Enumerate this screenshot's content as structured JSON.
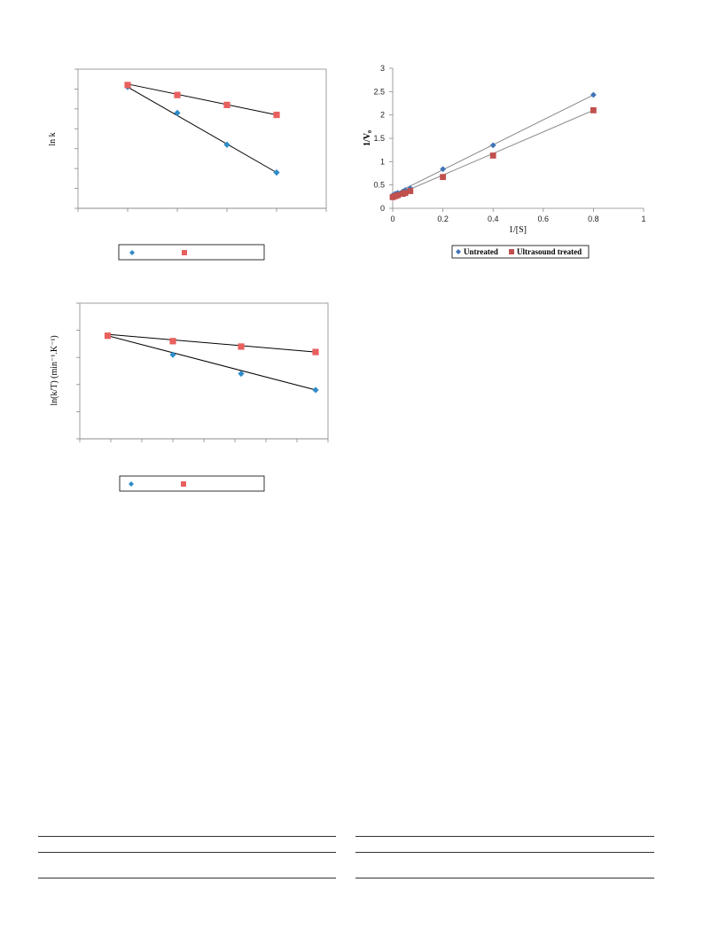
{
  "chart_data": [
    {
      "id": "lnk",
      "type": "scatter",
      "ylabel": "ln k",
      "xlabel": "",
      "legend_entries": [
        "",
        ""
      ],
      "series": [
        {
          "name": "",
          "color": "#2e8bc9",
          "marker": "diamond",
          "points": [
            [
              1,
              6.1
            ],
            [
              2,
              4.8
            ],
            [
              3,
              3.2
            ],
            [
              4,
              1.8
            ]
          ],
          "fit": [
            [
              1,
              6.1
            ],
            [
              4,
              1.8
            ]
          ]
        },
        {
          "name": "",
          "color": "#e8605e",
          "marker": "square",
          "points": [
            [
              1,
              6.2
            ],
            [
              2,
              5.7
            ],
            [
              3,
              5.2
            ],
            [
              4,
              4.7
            ]
          ],
          "fit": [
            [
              1,
              6.25
            ],
            [
              4,
              4.7
            ]
          ]
        }
      ],
      "xlim": [
        0,
        5
      ],
      "ylim": [
        0,
        7
      ],
      "grid": false,
      "legend": "bottom"
    },
    {
      "id": "lnkT",
      "type": "scatter",
      "ylabel": "ln(k/T) (min⁻¹.K⁻¹)",
      "xlabel": "",
      "legend_entries": [
        "",
        ""
      ],
      "series": [
        {
          "name": "",
          "color": "#2e8bc9",
          "marker": "diamond",
          "points": [
            [
              0.45,
              3.8
            ],
            [
              1.5,
              3.1
            ],
            [
              2.6,
              2.4
            ],
            [
              3.8,
              1.8
            ]
          ],
          "fit": [
            [
              0.45,
              3.8
            ],
            [
              3.8,
              1.8
            ]
          ]
        },
        {
          "name": "",
          "color": "#e8605e",
          "marker": "square",
          "points": [
            [
              0.45,
              3.8
            ],
            [
              1.5,
              3.6
            ],
            [
              2.6,
              3.4
            ],
            [
              3.8,
              3.2
            ]
          ],
          "fit": [
            [
              0.45,
              3.85
            ],
            [
              3.8,
              3.2
            ]
          ]
        }
      ],
      "xlim": [
        0,
        4
      ],
      "ylim": [
        0,
        5
      ],
      "grid": false,
      "legend": "bottom"
    },
    {
      "id": "lb",
      "type": "scatter",
      "ylabel": "1/V₀",
      "xlabel": "1/[S]",
      "x_ticks": [
        "0",
        "0.2",
        "0.4",
        "0.6",
        "0.8",
        "1"
      ],
      "y_ticks": [
        "0",
        "0.5",
        "1",
        "1.5",
        "2",
        "2.5",
        "3"
      ],
      "legend_entries": [
        "Untreated",
        "Ultrasound treated"
      ],
      "series": [
        {
          "name": "Untreated",
          "color": "#3f75b8",
          "marker": "diamond",
          "points": [
            [
              0.0,
              0.28
            ],
            [
              0.01,
              0.31
            ],
            [
              0.02,
              0.33
            ],
            [
              0.04,
              0.36
            ],
            [
              0.05,
              0.39
            ],
            [
              0.07,
              0.43
            ],
            [
              0.2,
              0.84
            ],
            [
              0.4,
              1.35
            ],
            [
              0.8,
              2.43
            ]
          ],
          "fit": [
            [
              0,
              0.29
            ],
            [
              0.8,
              2.43
            ]
          ]
        },
        {
          "name": "Ultrasound treated",
          "color": "#c0504d",
          "marker": "square",
          "points": [
            [
              0.0,
              0.24
            ],
            [
              0.01,
              0.26
            ],
            [
              0.02,
              0.28
            ],
            [
              0.04,
              0.31
            ],
            [
              0.05,
              0.33
            ],
            [
              0.07,
              0.37
            ],
            [
              0.2,
              0.67
            ],
            [
              0.4,
              1.13
            ],
            [
              0.8,
              2.1
            ]
          ],
          "fit": [
            [
              0,
              0.25
            ],
            [
              0.8,
              2.1
            ]
          ]
        }
      ],
      "xlim": [
        0,
        1
      ],
      "ylim": [
        0,
        3
      ],
      "grid": false,
      "legend": "bottom"
    }
  ]
}
